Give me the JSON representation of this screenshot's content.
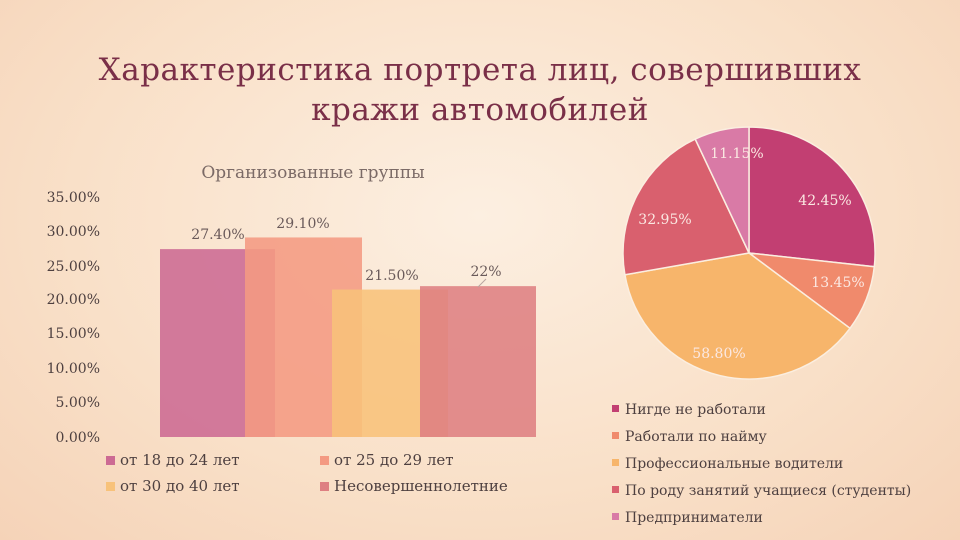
{
  "title_line1": "Характеристика портрета лиц, совершивших",
  "title_line2": "кражи автомобилей",
  "chart_data": [
    {
      "type": "bar",
      "title": "Организованные группы",
      "ylim": [
        0,
        35
      ],
      "yticks": [
        "35.00%",
        "30.00%",
        "25.00%",
        "20.00%",
        "15.00%",
        "10.00%",
        "5.00%",
        "0.00%"
      ],
      "series": [
        {
          "name": "от 18 до 24 лет",
          "value": 27.4,
          "label": "27.40%",
          "color": "#cc6a93"
        },
        {
          "name": "от 25 до 29 лет",
          "value": 29.1,
          "label": "29.10%",
          "color": "#f49a82"
        },
        {
          "name": "от 30 до 40 лет",
          "value": 21.5,
          "label": "21.50%",
          "color": "#f8c27a"
        },
        {
          "name": "Несовершеннолетние",
          "value": 22,
          "label": "22%",
          "color": "#de7f82"
        }
      ],
      "legend": [
        "от 18 до 24 лет",
        "от 25 до 29 лет",
        "от 30 до 40 лет",
        "Несовершеннолетние"
      ]
    },
    {
      "type": "pie",
      "slices": [
        {
          "name": "Нигде не работали",
          "value": 42.45,
          "label": "42.45%",
          "color": "#c23f72"
        },
        {
          "name": "Работали по найму",
          "value": 13.45,
          "label": "13.45%",
          "color": "#f08a6c"
        },
        {
          "name": "Профессиональные водители",
          "value": 58.8,
          "label": "58.80%",
          "color": "#f7b56b"
        },
        {
          "name": "По роду занятий учащиеся (студенты)",
          "value": 32.95,
          "label": "32.95%",
          "color": "#d9606e"
        },
        {
          "name": "Предприниматели",
          "value": 11.15,
          "label": "11.15%",
          "color": "#d97aa6"
        }
      ]
    }
  ]
}
